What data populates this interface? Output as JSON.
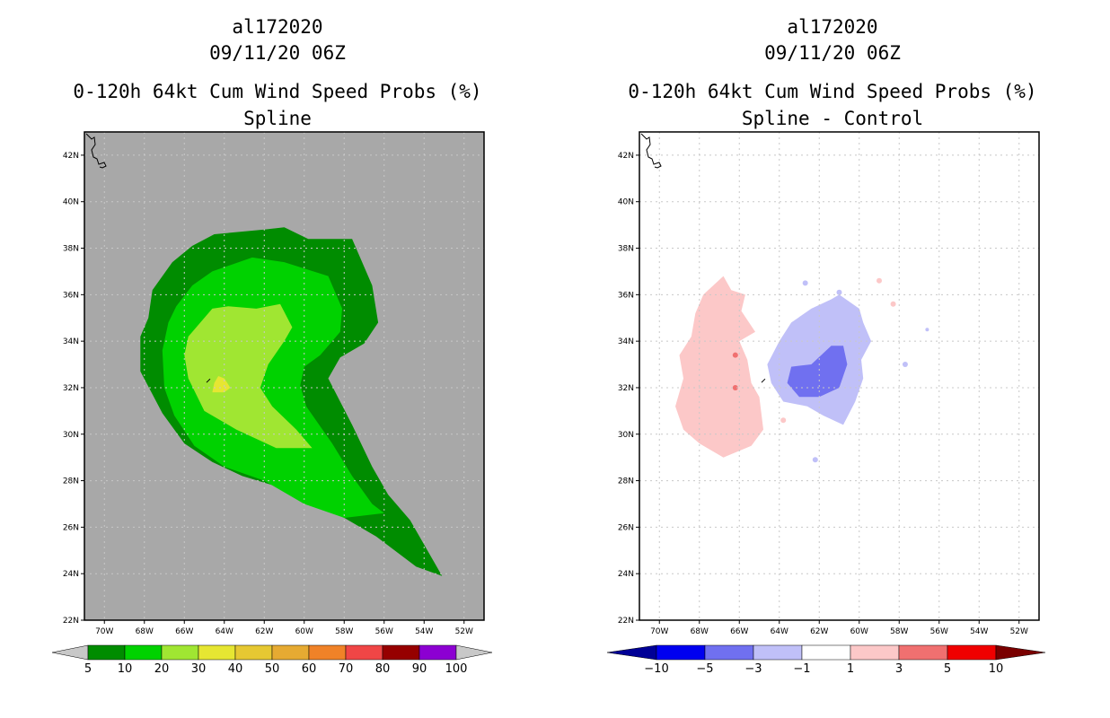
{
  "colors": {
    "land_bg": "#a8a8a8",
    "frame": "#000000",
    "grid": "#c8c8c8",
    "prob_levels": [
      "#008c00",
      "#00d200",
      "#a0e632",
      "#e6e632",
      "#e6c832",
      "#e6aa32",
      "#f08228",
      "#f04646",
      "#960000",
      "#8c00d2"
    ],
    "prob_below": "#c8c8c8",
    "prob_above": "#c8c8c8",
    "diff_levels": [
      "#0000f0",
      "#7070f0",
      "#c0c0f8",
      "#ffffff",
      "#fcc8c8",
      "#f07070",
      "#f00000"
    ],
    "diff_below": "#000096",
    "diff_above": "#7a0000"
  },
  "chart_data": [
    {
      "type": "heatmap",
      "storm_id": "al172020",
      "datetime": "09/11/20 06Z",
      "title": "0-120h 64kt Cum Wind Speed Probs (%)",
      "subtitle": "Spline",
      "xlabel": "",
      "ylabel": "",
      "xlim": [
        -71,
        -51
      ],
      "ylim": [
        22,
        43
      ],
      "x_ticks": [
        -70,
        -68,
        -66,
        -64,
        -62,
        -60,
        -58,
        -56,
        -54,
        -52
      ],
      "x_tick_labels": [
        "70W",
        "68W",
        "66W",
        "64W",
        "62W",
        "60W",
        "58W",
        "56W",
        "54W",
        "52W"
      ],
      "y_ticks": [
        22,
        24,
        26,
        28,
        30,
        32,
        34,
        36,
        38,
        40,
        42
      ],
      "y_tick_labels": [
        "22N",
        "24N",
        "26N",
        "28N",
        "30N",
        "32N",
        "34N",
        "36N",
        "38N",
        "40N",
        "42N"
      ],
      "grid": true,
      "colorbar_labels": [
        "5",
        "10",
        "20",
        "30",
        "40",
        "50",
        "60",
        "70",
        "80",
        "90",
        "100"
      ],
      "contours": [
        {
          "level": "5-10",
          "color_index": 0,
          "points": [
            [
              -67.6,
              36.2
            ],
            [
              -66.6,
              37.4
            ],
            [
              -65.6,
              38.1
            ],
            [
              -64.5,
              38.6
            ],
            [
              -62.0,
              38.8
            ],
            [
              -61.0,
              38.9
            ],
            [
              -59.8,
              38.4
            ],
            [
              -57.6,
              38.4
            ],
            [
              -56.6,
              36.4
            ],
            [
              -56.3,
              34.8
            ],
            [
              -57.0,
              33.9
            ],
            [
              -58.2,
              33.3
            ],
            [
              -58.8,
              32.4
            ],
            [
              -57.6,
              30.4
            ],
            [
              -56.6,
              28.6
            ],
            [
              -55.8,
              27.4
            ],
            [
              -54.7,
              26.3
            ],
            [
              -53.1,
              23.9
            ],
            [
              -54.4,
              24.3
            ],
            [
              -56.4,
              25.6
            ],
            [
              -58.6,
              26.7
            ],
            [
              -60.8,
              27.6
            ],
            [
              -63.1,
              28.2
            ],
            [
              -64.6,
              28.8
            ],
            [
              -66.0,
              29.6
            ],
            [
              -67.1,
              30.9
            ],
            [
              -68.2,
              32.7
            ],
            [
              -68.2,
              34.2
            ],
            [
              -67.8,
              35.0
            ]
          ]
        },
        {
          "level": "10-20",
          "color_index": 1,
          "points": [
            [
              -66.4,
              35.5
            ],
            [
              -65.6,
              36.4
            ],
            [
              -64.6,
              37.0
            ],
            [
              -62.6,
              37.6
            ],
            [
              -61.0,
              37.4
            ],
            [
              -58.8,
              36.8
            ],
            [
              -58.1,
              35.4
            ],
            [
              -58.2,
              34.4
            ],
            [
              -59.2,
              33.4
            ],
            [
              -60.0,
              32.9
            ],
            [
              -60.2,
              32.1
            ],
            [
              -59.9,
              31.2
            ],
            [
              -58.6,
              29.6
            ],
            [
              -57.6,
              28.2
            ],
            [
              -56.6,
              27.0
            ],
            [
              -56.0,
              26.6
            ],
            [
              -58.0,
              26.4
            ],
            [
              -60.0,
              27.0
            ],
            [
              -62.0,
              28.0
            ],
            [
              -64.0,
              28.6
            ],
            [
              -65.5,
              29.5
            ],
            [
              -66.5,
              30.8
            ],
            [
              -67.0,
              32.0
            ],
            [
              -67.1,
              33.6
            ],
            [
              -66.8,
              34.8
            ]
          ]
        },
        {
          "level": "20-30",
          "color_index": 2,
          "points": [
            [
              -65.8,
              34.2
            ],
            [
              -64.6,
              35.4
            ],
            [
              -63.8,
              35.5
            ],
            [
              -62.4,
              35.4
            ],
            [
              -61.2,
              35.6
            ],
            [
              -60.6,
              34.6
            ],
            [
              -61.0,
              34.0
            ],
            [
              -61.8,
              33.0
            ],
            [
              -62.2,
              32.0
            ],
            [
              -61.6,
              31.2
            ],
            [
              -60.4,
              30.2
            ],
            [
              -59.6,
              29.4
            ],
            [
              -61.4,
              29.4
            ],
            [
              -63.4,
              30.2
            ],
            [
              -65.0,
              31.0
            ],
            [
              -65.8,
              32.4
            ],
            [
              -66.0,
              33.4
            ]
          ]
        },
        {
          "level": "30-40",
          "color_index": 3,
          "points": [
            [
              -64.3,
              32.5
            ],
            [
              -64.0,
              32.4
            ],
            [
              -63.7,
              32.0
            ],
            [
              -64.0,
              31.8
            ],
            [
              -64.6,
              31.8
            ],
            [
              -64.5,
              32.2
            ]
          ]
        }
      ],
      "island_marker": [
        -64.8,
        32.3
      ]
    },
    {
      "type": "heatmap",
      "storm_id": "al172020",
      "datetime": "09/11/20 06Z",
      "title": "0-120h 64kt Cum Wind Speed Probs (%)",
      "subtitle": "Spline - Control",
      "xlabel": "",
      "ylabel": "",
      "xlim": [
        -71,
        -51
      ],
      "ylim": [
        22,
        43
      ],
      "x_ticks": [
        -70,
        -68,
        -66,
        -64,
        -62,
        -60,
        -58,
        -56,
        -54,
        -52
      ],
      "x_tick_labels": [
        "70W",
        "68W",
        "66W",
        "64W",
        "62W",
        "60W",
        "58W",
        "56W",
        "54W",
        "52W"
      ],
      "y_ticks": [
        22,
        24,
        26,
        28,
        30,
        32,
        34,
        36,
        38,
        40,
        42
      ],
      "y_tick_labels": [
        "22N",
        "24N",
        "26N",
        "28N",
        "30N",
        "32N",
        "34N",
        "36N",
        "38N",
        "40N",
        "42N"
      ],
      "grid": true,
      "colorbar_labels": [
        "−10",
        "−5",
        "−3",
        "−1",
        "1",
        "3",
        "5",
        "10"
      ],
      "contours": [
        {
          "level": "1-3",
          "color_index": 4,
          "points": [
            [
              -67.8,
              36.0
            ],
            [
              -66.8,
              36.8
            ],
            [
              -66.4,
              36.2
            ],
            [
              -65.7,
              36.0
            ],
            [
              -65.9,
              35.3
            ],
            [
              -65.2,
              34.4
            ],
            [
              -66.0,
              34.0
            ],
            [
              -65.6,
              33.2
            ],
            [
              -65.4,
              32.2
            ],
            [
              -65.0,
              31.6
            ],
            [
              -64.8,
              30.2
            ],
            [
              -65.4,
              29.5
            ],
            [
              -66.8,
              29.0
            ],
            [
              -68.0,
              29.6
            ],
            [
              -68.8,
              30.2
            ],
            [
              -69.2,
              31.2
            ],
            [
              -68.8,
              32.4
            ],
            [
              -69.0,
              33.4
            ],
            [
              -68.4,
              34.2
            ],
            [
              -68.2,
              35.2
            ]
          ]
        },
        {
          "level": "-3--1",
          "color_index": 2,
          "points": [
            [
              -61.0,
              36.0
            ],
            [
              -60.0,
              35.4
            ],
            [
              -59.8,
              34.8
            ],
            [
              -59.4,
              34.0
            ],
            [
              -59.9,
              33.2
            ],
            [
              -59.8,
              32.4
            ],
            [
              -60.2,
              31.4
            ],
            [
              -60.8,
              30.4
            ],
            [
              -61.8,
              30.8
            ],
            [
              -62.6,
              31.2
            ],
            [
              -63.8,
              31.4
            ],
            [
              -64.4,
              32.2
            ],
            [
              -64.6,
              33.0
            ],
            [
              -64.0,
              34.0
            ],
            [
              -63.4,
              34.8
            ],
            [
              -62.4,
              35.4
            ],
            [
              -61.4,
              35.8
            ]
          ]
        },
        {
          "level": "-5--3",
          "color_index": 1,
          "points": [
            [
              -61.4,
              33.8
            ],
            [
              -60.8,
              33.8
            ],
            [
              -60.6,
              33.0
            ],
            [
              -61.0,
              32.0
            ],
            [
              -62.0,
              31.6
            ],
            [
              -63.0,
              31.6
            ],
            [
              -63.6,
              32.2
            ],
            [
              -63.4,
              32.9
            ],
            [
              -62.4,
              33.0
            ]
          ]
        }
      ],
      "island_marker": [
        -64.8,
        32.3
      ]
    }
  ]
}
